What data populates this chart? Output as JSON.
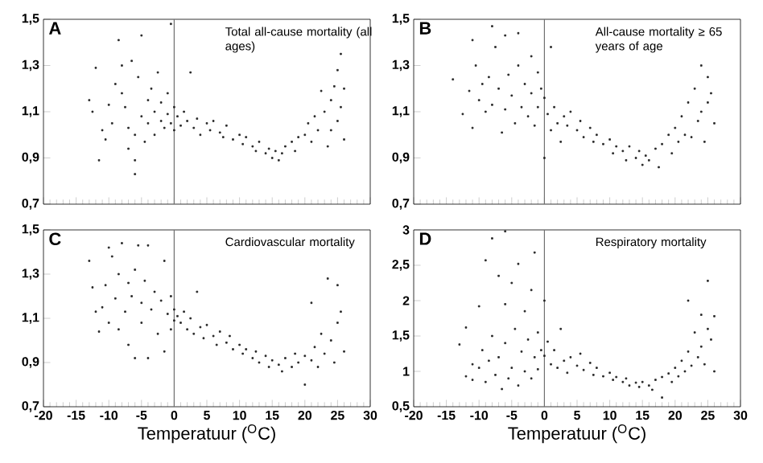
{
  "chart_data": [
    {
      "type": "scatter",
      "title": "Total all-cause mortality (all ages)",
      "annotations": [
        "A"
      ],
      "color": "#222222",
      "marker": "square",
      "tick_labels": "y",
      "xlim": [
        -20,
        30
      ],
      "xticks": [
        -20,
        -15,
        -10,
        -5,
        0,
        5,
        10,
        15,
        20,
        25,
        30
      ],
      "ylim": [
        0.7,
        1.5
      ],
      "yticks": [
        {
          "value": 0.7,
          "label": "0,7"
        },
        {
          "value": 0.9,
          "label": "0,9"
        },
        {
          "value": 1.1,
          "label": "1,1"
        },
        {
          "value": 1.3,
          "label": "1,3"
        },
        {
          "value": 1.5,
          "label": "1,5"
        }
      ],
      "ref_lines": [
        {
          "axis": "x",
          "value": 0,
          "color": "#707070"
        }
      ],
      "x": [
        -13,
        -12.5,
        -12,
        -11.5,
        -11,
        -10.5,
        -10,
        -9.5,
        -9,
        -8.5,
        -8,
        -8,
        -7.5,
        -7,
        -7,
        -6.5,
        -6,
        -6,
        -6,
        -5.5,
        -5,
        -5,
        -4.5,
        -4,
        -4,
        -3.5,
        -3,
        -3,
        -2.5,
        -2,
        -2,
        -1.5,
        -1,
        -1,
        -0.5,
        -0.5,
        0,
        0,
        0.5,
        1,
        1.5,
        2,
        2.5,
        3,
        3.5,
        4,
        5,
        5.5,
        6,
        7,
        7.5,
        8,
        9,
        10,
        10.5,
        11,
        12,
        12.5,
        13,
        14,
        14.5,
        15,
        15.5,
        16,
        16.5,
        17,
        18,
        18.5,
        19,
        20,
        20.5,
        21,
        21.5,
        22,
        22.5,
        23,
        23.5,
        24,
        24,
        24.5,
        25,
        25,
        25.5,
        25.5,
        26,
        26
      ],
      "values": [
        1.15,
        1.1,
        1.29,
        0.89,
        1.02,
        0.98,
        1.13,
        1.05,
        1.22,
        1.41,
        1.18,
        1.3,
        1.12,
        1.03,
        0.94,
        1.32,
        0.83,
        0.89,
        1.0,
        1.25,
        1.08,
        1.43,
        0.97,
        1.15,
        1.05,
        1.2,
        1.0,
        1.1,
        1.27,
        1.06,
        1.14,
        1.03,
        1.18,
        1.09,
        1.05,
        1.48,
        1.12,
        1.02,
        1.08,
        1.04,
        1.1,
        1.06,
        1.27,
        1.03,
        1.07,
        1.0,
        1.05,
        1.02,
        1.06,
        1.01,
        0.99,
        1.04,
        0.98,
        1.0,
        0.96,
        0.99,
        0.95,
        0.93,
        0.97,
        0.92,
        0.94,
        0.9,
        0.93,
        0.89,
        0.92,
        0.95,
        0.97,
        0.93,
        0.99,
        1.0,
        1.05,
        0.97,
        1.08,
        1.02,
        1.19,
        1.1,
        0.95,
        1.15,
        1.02,
        1.21,
        1.28,
        1.06,
        1.35,
        1.12,
        1.2,
        0.98
      ]
    },
    {
      "type": "scatter",
      "title": "All-cause mortality ≥ 65 years of age",
      "annotations": [
        "B"
      ],
      "color": "#222222",
      "marker": "square",
      "tick_labels": "y",
      "xlim": [
        -20,
        30
      ],
      "xticks": [
        -20,
        -15,
        -10,
        -5,
        0,
        5,
        10,
        15,
        20,
        25,
        30
      ],
      "ylim": [
        0.7,
        1.5
      ],
      "yticks": [
        {
          "value": 0.7,
          "label": "0,7"
        },
        {
          "value": 0.9,
          "label": "0,9"
        },
        {
          "value": 1.1,
          "label": "1,1"
        },
        {
          "value": 1.3,
          "label": "1,3"
        },
        {
          "value": 1.5,
          "label": "1,5"
        }
      ],
      "ref_lines": [
        {
          "axis": "x",
          "value": 0,
          "color": "#707070"
        }
      ],
      "x": [
        -14,
        -12.5,
        -11.5,
        -11,
        -11,
        -10.5,
        -10,
        -9.5,
        -9,
        -8.5,
        -8,
        -8,
        -7.5,
        -7,
        -6.5,
        -6,
        -6,
        -5.5,
        -5,
        -4.5,
        -4,
        -4,
        -3.5,
        -3,
        -2.5,
        -2,
        -2,
        -1.5,
        -1,
        -1,
        -0.5,
        0,
        0,
        0.5,
        1,
        1,
        1.5,
        2,
        2.5,
        3,
        3.5,
        4,
        5,
        5.5,
        6,
        7,
        7.5,
        8,
        9,
        10,
        10.5,
        11,
        12,
        12.5,
        13,
        14,
        14.5,
        15,
        15.5,
        16,
        17,
        17.5,
        18,
        19,
        19.5,
        20,
        20.5,
        21,
        21.5,
        22,
        22.5,
        23,
        23.5,
        24,
        24,
        24.5,
        25,
        25,
        25.5,
        26
      ],
      "values": [
        1.24,
        1.09,
        1.19,
        1.03,
        1.41,
        1.3,
        1.15,
        1.22,
        1.1,
        1.25,
        1.47,
        1.13,
        1.38,
        1.2,
        1.01,
        1.43,
        1.11,
        1.26,
        1.17,
        1.05,
        1.44,
        1.3,
        1.12,
        1.22,
        1.08,
        1.18,
        1.34,
        1.04,
        1.27,
        1.12,
        1.2,
        1.16,
        0.9,
        1.09,
        1.38,
        1.02,
        1.12,
        1.05,
        0.97,
        1.08,
        1.04,
        1.1,
        1.02,
        1.06,
        0.99,
        1.03,
        0.97,
        1.0,
        0.96,
        0.98,
        0.92,
        0.95,
        0.93,
        0.89,
        0.95,
        0.9,
        0.93,
        0.87,
        0.91,
        0.89,
        0.94,
        0.86,
        0.96,
        1.0,
        0.92,
        1.03,
        0.97,
        1.08,
        1.0,
        1.14,
        0.99,
        1.2,
        1.06,
        1.3,
        1.1,
        0.97,
        1.25,
        1.14,
        1.18,
        1.05
      ]
    },
    {
      "type": "scatter",
      "title": "Cardiovascular mortality",
      "annotations": [
        "C"
      ],
      "color": "#222222",
      "marker": "square",
      "xlabel": "Temperatuur ($^{O}$C)",
      "xlim": [
        -20,
        30
      ],
      "xticks": [
        -20,
        -15,
        -10,
        -5,
        0,
        5,
        10,
        15,
        20,
        25,
        30
      ],
      "ylim": [
        0.7,
        1.5
      ],
      "yticks": [
        {
          "value": 0.7,
          "label": "0,7"
        },
        {
          "value": 0.9,
          "label": "0,9"
        },
        {
          "value": 1.1,
          "label": "1,1"
        },
        {
          "value": 1.3,
          "label": "1,3"
        },
        {
          "value": 1.5,
          "label": "1,5"
        }
      ],
      "ref_lines": [
        {
          "axis": "x",
          "value": 0,
          "color": "#707070"
        }
      ],
      "x": [
        -13,
        -12.5,
        -12,
        -11.5,
        -11,
        -10.5,
        -10,
        -10,
        -9.5,
        -9,
        -8.5,
        -8.5,
        -8,
        -7.5,
        -7,
        -7,
        -6.5,
        -6,
        -6,
        -5.5,
        -5,
        -5,
        -4.5,
        -4,
        -4,
        -3.5,
        -3,
        -2.5,
        -2,
        -1.5,
        -1.5,
        -1,
        -0.5,
        -0.5,
        0,
        0,
        0.5,
        1,
        1.5,
        2,
        2.5,
        3,
        3.5,
        4,
        4.5,
        5,
        6,
        6.5,
        7,
        8,
        8.5,
        9,
        10,
        10.5,
        11,
        12,
        12.5,
        13,
        14,
        14.5,
        15,
        16,
        16.5,
        17,
        18,
        18.5,
        19,
        20,
        20,
        21,
        21,
        21.5,
        22,
        22.5,
        23,
        23.5,
        24,
        24.5,
        25,
        25,
        25.5,
        26
      ],
      "values": [
        1.36,
        1.24,
        1.13,
        1.04,
        1.15,
        1.25,
        1.42,
        1.08,
        1.38,
        1.19,
        1.05,
        1.3,
        1.44,
        1.13,
        1.26,
        0.98,
        1.2,
        0.92,
        1.32,
        1.43,
        1.17,
        1.08,
        1.27,
        0.92,
        1.43,
        1.14,
        1.22,
        1.03,
        1.18,
        1.36,
        0.95,
        1.12,
        1.2,
        1.05,
        1.14,
        1.09,
        1.11,
        1.08,
        1.13,
        1.05,
        1.1,
        1.03,
        1.22,
        1.06,
        1.01,
        1.07,
        1.02,
        0.98,
        1.04,
        0.99,
        1.02,
        0.96,
        0.98,
        0.94,
        0.96,
        0.92,
        0.95,
        0.9,
        0.93,
        0.88,
        0.91,
        0.89,
        0.86,
        0.92,
        0.88,
        0.94,
        0.9,
        0.8,
        0.93,
        1.17,
        0.91,
        0.97,
        0.88,
        1.03,
        0.94,
        1.28,
        1.0,
        0.9,
        1.25,
        1.08,
        1.13,
        0.95
      ]
    },
    {
      "type": "scatter",
      "title": "Respiratory mortality",
      "annotations": [
        "D"
      ],
      "color": "#222222",
      "marker": "square",
      "xlabel": "Temperatuur ($^{O}$C)",
      "xlim": [
        -20,
        30
      ],
      "xticks": [
        -20,
        -15,
        -10,
        -5,
        0,
        5,
        10,
        15,
        20,
        25,
        30
      ],
      "ylim": [
        0.5,
        3
      ],
      "yticks": [
        {
          "value": 0.5,
          "label": "0,5"
        },
        1,
        {
          "value": 1.5,
          "label": "1,5"
        },
        2,
        {
          "value": 2.5,
          "label": "2,5"
        },
        3
      ],
      "ref_lines": [
        {
          "axis": "x",
          "value": 0,
          "color": "#707070"
        }
      ],
      "x": [
        -13,
        -12,
        -12,
        -11,
        -11,
        -10,
        -10,
        -9.5,
        -9,
        -9,
        -8.5,
        -8,
        -8,
        -7.5,
        -7,
        -7,
        -6.5,
        -6,
        -6,
        -6,
        -5.5,
        -5,
        -5,
        -4.5,
        -4,
        -4,
        -3.5,
        -3,
        -3,
        -2.5,
        -2,
        -2,
        -1.5,
        -1.5,
        -1,
        -1,
        -0.5,
        0,
        0,
        0.5,
        1,
        1.5,
        2,
        2.5,
        3,
        3.5,
        4,
        5,
        5.5,
        6,
        7,
        7.5,
        8,
        9,
        10,
        10.5,
        11,
        12,
        12.5,
        13,
        14,
        14.5,
        15,
        16,
        16.5,
        17,
        18,
        18,
        19,
        19.5,
        20,
        20.5,
        21,
        21.5,
        22,
        22,
        22.5,
        23,
        23.5,
        24,
        24,
        24.5,
        25,
        25,
        25.5,
        26,
        26
      ],
      "values": [
        1.38,
        1.62,
        0.93,
        0.88,
        1.1,
        1.92,
        1.05,
        1.3,
        2.57,
        0.85,
        1.15,
        2.88,
        1.5,
        0.95,
        2.35,
        1.2,
        0.75,
        2.98,
        1.95,
        1.4,
        0.9,
        2.25,
        1.05,
        1.6,
        2.52,
        0.8,
        1.28,
        1.85,
        1.0,
        1.45,
        2.15,
        0.9,
        2.68,
        1.2,
        1.55,
        1.03,
        1.3,
        2.0,
        1.22,
        1.42,
        1.1,
        1.3,
        1.05,
        1.6,
        1.15,
        0.98,
        1.2,
        1.08,
        1.25,
        1.02,
        1.12,
        0.95,
        1.05,
        0.93,
        0.98,
        0.88,
        0.92,
        0.85,
        0.9,
        0.8,
        0.84,
        0.78,
        0.85,
        0.8,
        0.74,
        0.88,
        0.63,
        0.92,
        0.97,
        0.85,
        1.05,
        0.93,
        1.15,
        1.0,
        1.28,
        2.0,
        1.08,
        1.55,
        1.2,
        1.8,
        1.35,
        1.1,
        2.28,
        1.6,
        1.45,
        1.78,
        1.0
      ]
    }
  ]
}
